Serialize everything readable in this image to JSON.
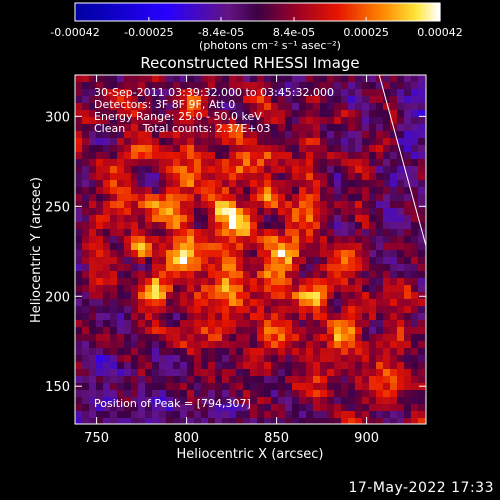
{
  "colorbar": {
    "ticks": [
      "-0.00042",
      "-0.00025",
      "-8.4e-05",
      "8.4e-05",
      "0.00025",
      "0.00042"
    ],
    "tick_values": [
      -0.00042,
      -0.00025,
      -8.4e-05,
      8.4e-05,
      0.00025,
      0.00042
    ],
    "range": [
      -0.00042,
      0.00042
    ],
    "unit_label": "(photons cm⁻² s⁻¹ asec⁻²)"
  },
  "chart_data": {
    "type": "heatmap",
    "title": "Reconstructed RHESSI Image",
    "xlabel": "Heliocentric X (arcsec)",
    "ylabel": "Heliocentric Y (arcsec)",
    "xlim": [
      738,
      933
    ],
    "ylim": [
      129,
      323
    ],
    "xticks": [
      750,
      800,
      850,
      900
    ],
    "yticks": [
      150,
      200,
      250,
      300
    ],
    "peak_position": [
      794,
      307
    ],
    "limb_line": [
      [
        907,
        323
      ],
      [
        933,
        228
      ]
    ],
    "annotations": [
      "30-Sep-2011 03:39:32.000 to 03:45:32.000",
      "Detectors: 3F 8F 9F, Att 0",
      "Energy Range: 25.0 - 50.0 keV",
      "Clean     Total counts: 2.37E+03"
    ],
    "peak_label": "Position of Peak = [794,307]"
  },
  "footer": {
    "timestamp": "17-May-2022 17:33"
  }
}
